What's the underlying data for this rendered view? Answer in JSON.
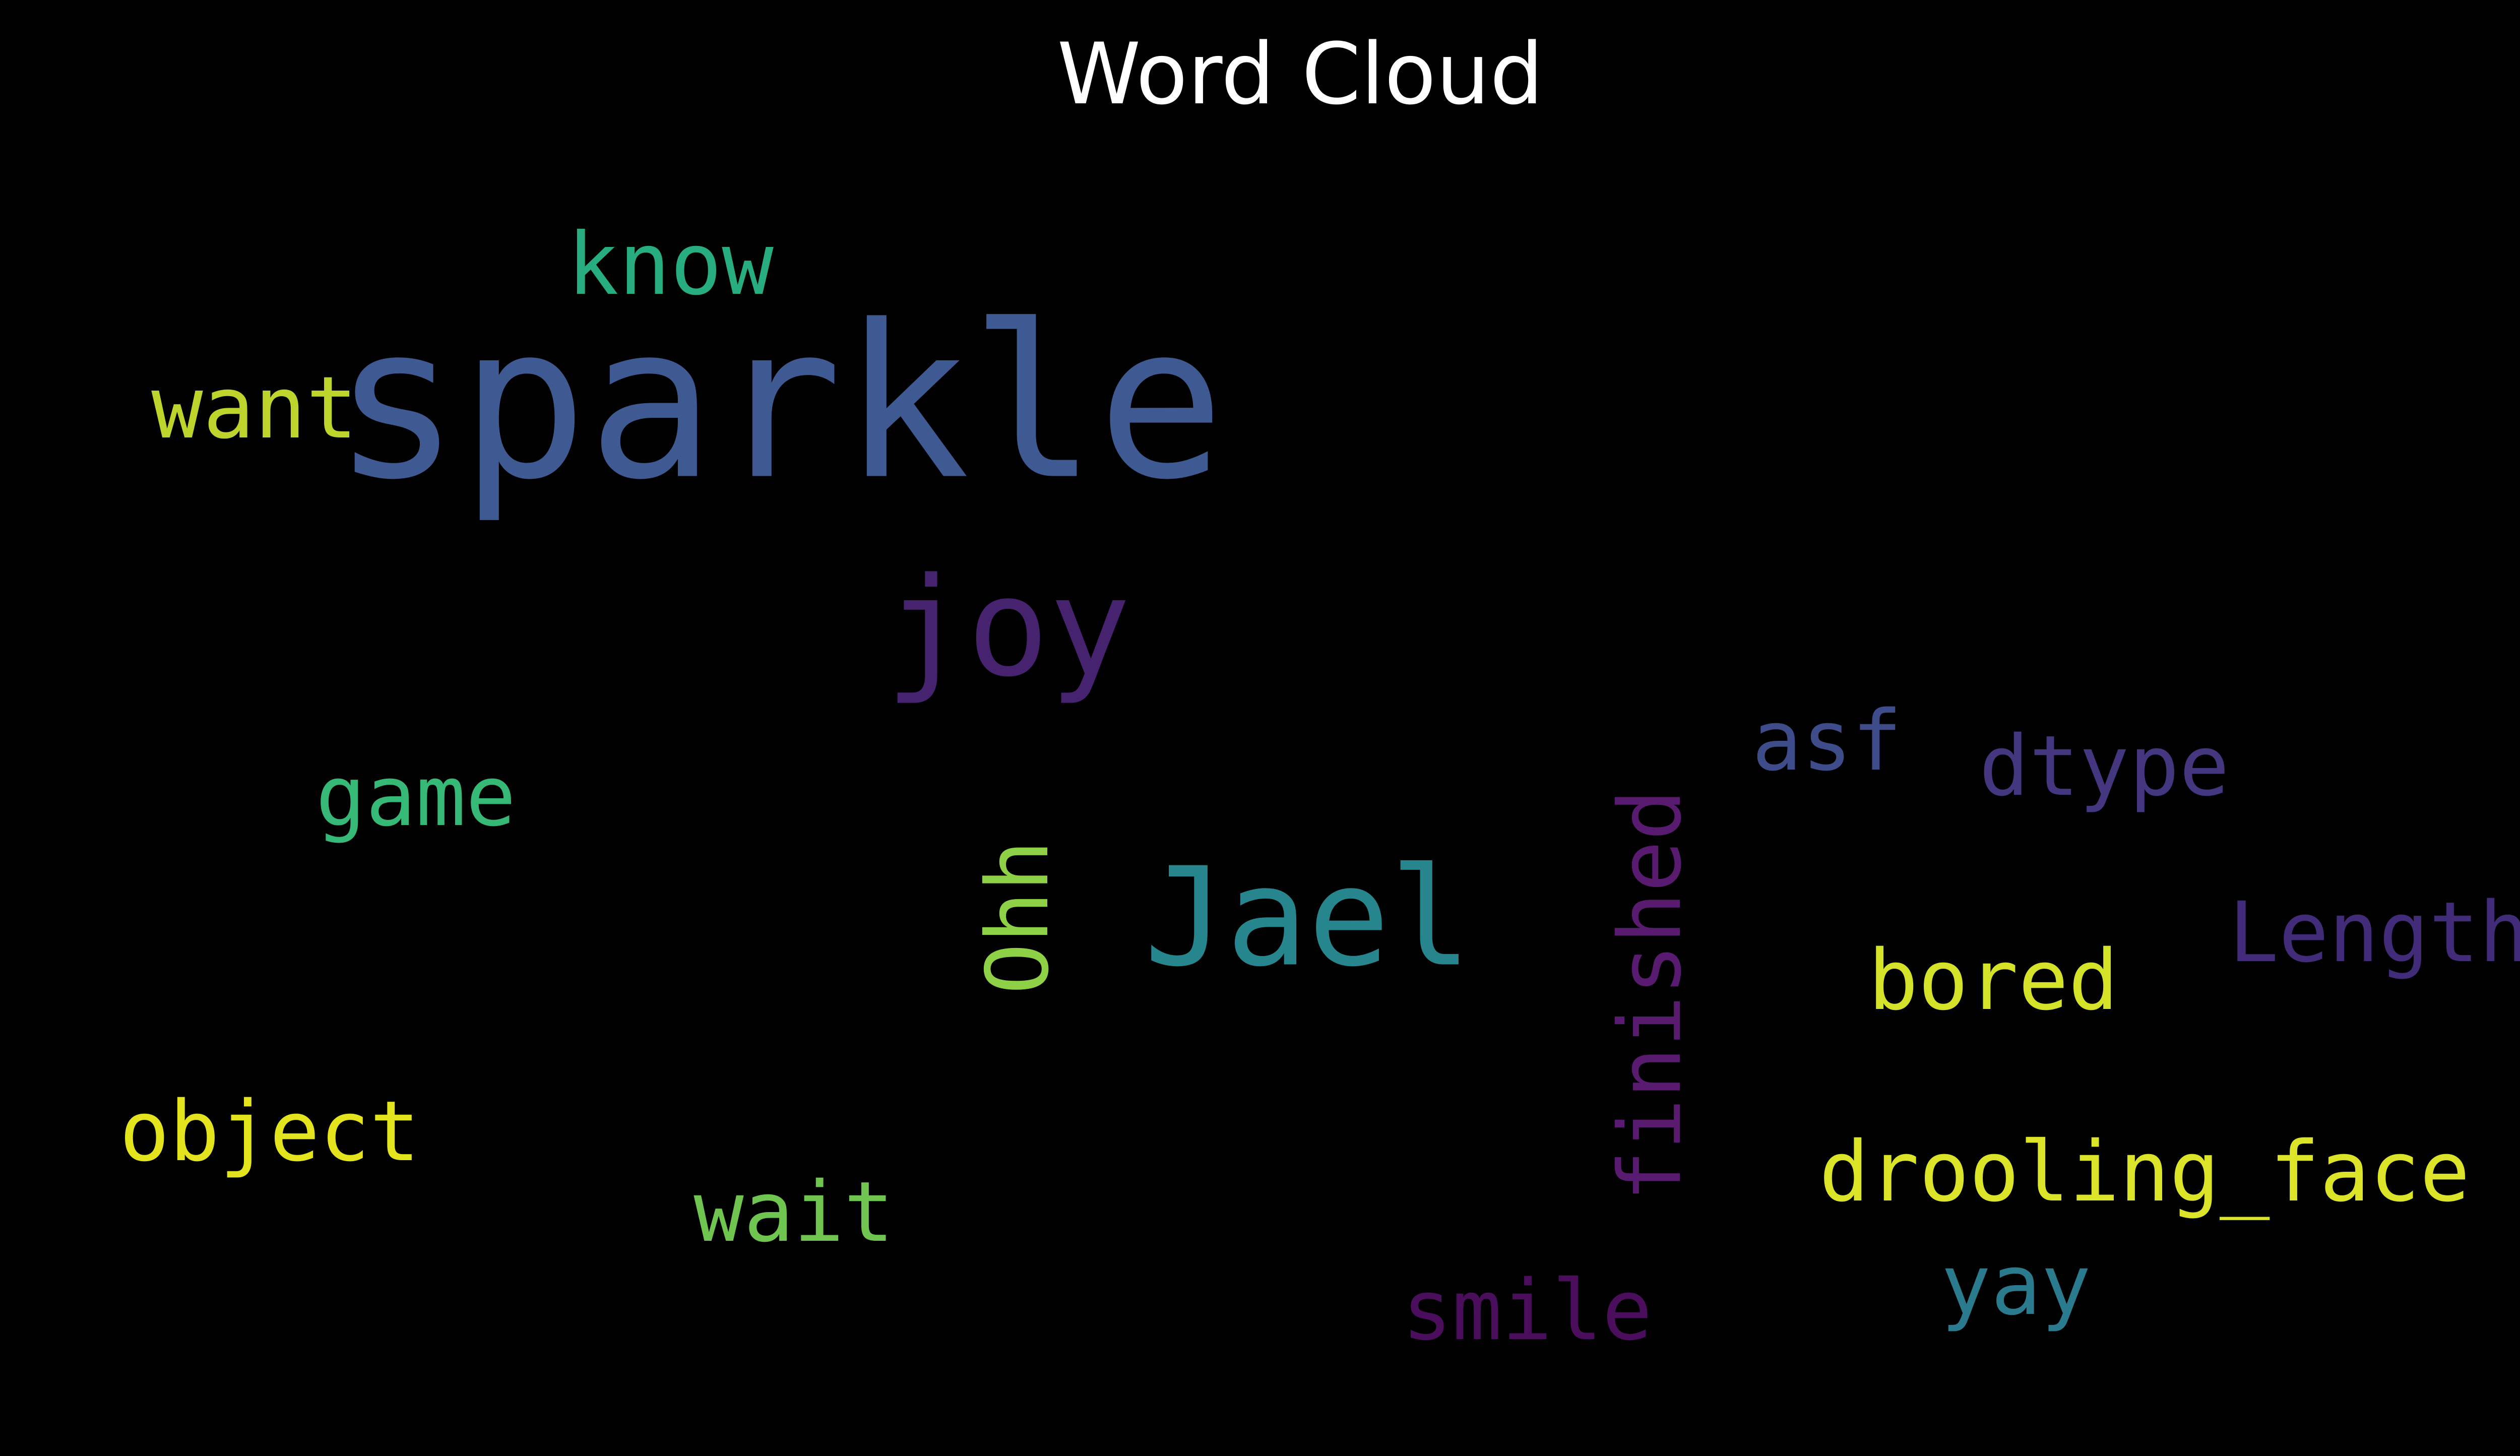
{
  "chart_data": {
    "type": "wordcloud",
    "title": "Word Cloud",
    "background": "#000000",
    "words": [
      {
        "text": "sparkle",
        "color": "#3f5a93"
      },
      {
        "text": "know",
        "color": "#27ad80"
      },
      {
        "text": "want",
        "color": "#bcd42b"
      },
      {
        "text": "joy",
        "color": "#46226f"
      },
      {
        "text": "asf",
        "color": "#3e4c8a"
      },
      {
        "text": "dtype",
        "color": "#44367f"
      },
      {
        "text": "game",
        "color": "#36b877"
      },
      {
        "text": "Jael",
        "color": "#26858d"
      },
      {
        "text": "Ohh",
        "color": "#8ed146"
      },
      {
        "text": "finished",
        "color": "#591b6f"
      },
      {
        "text": "Length",
        "color": "#422b78"
      },
      {
        "text": "bored",
        "color": "#d5e22a"
      },
      {
        "text": "object",
        "color": "#e3e41d"
      },
      {
        "text": "drooling_face",
        "color": "#dce42a"
      },
      {
        "text": "wait",
        "color": "#6fc54f"
      },
      {
        "text": "yay",
        "color": "#2b7b8e"
      },
      {
        "text": "smile",
        "color": "#4b0e5c"
      }
    ]
  }
}
